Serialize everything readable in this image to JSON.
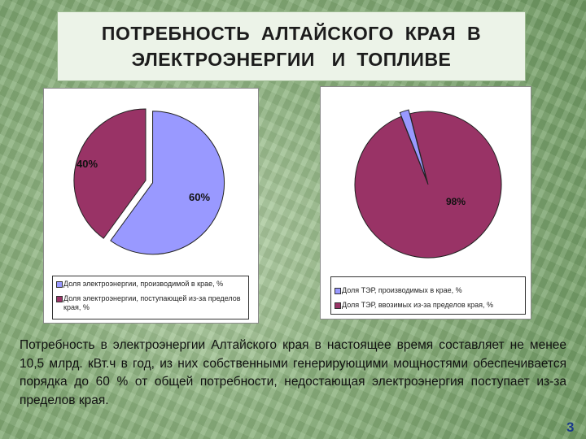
{
  "title": {
    "line1": "ПОТРЕБНОСТЬ  АЛТАЙСКОГО  КРАЯ  В",
    "line2": "ЭЛЕКТРОЭНЕРГИИ   И  ТОПЛИВЕ"
  },
  "colors": {
    "blue": "#9999ff",
    "maroon": "#993366"
  },
  "chart_data": [
    {
      "type": "pie",
      "slices": [
        {
          "label": "Доля электроэнергии, производимой в крае, %",
          "value": 60,
          "display": "60%",
          "color": "#9999ff",
          "exploded": true
        },
        {
          "label": "Доля электроэнергии, поступающей из-за пределов края, %",
          "value": 40,
          "display": "40%",
          "color": "#993366",
          "exploded": false
        }
      ],
      "legend": "bottom"
    },
    {
      "type": "pie",
      "slices": [
        {
          "label": "Доля ТЭР, производимых в крае, %",
          "value": 2,
          "display": "2%",
          "color": "#9999ff",
          "exploded": true
        },
        {
          "label": "Доля ТЭР, ввозимых из-за пределов края, %",
          "value": 98,
          "display": "98%",
          "color": "#993366",
          "exploded": false
        }
      ],
      "legend": "bottom"
    }
  ],
  "body": {
    "text": "        Потребность в электроэнергии Алтайского края в настоящее время составляет  не  менее  10,5  млрд. кВт.ч  в  год,  из  них  собственными генерирующими мощностями обеспечивается порядка до 60 % от  общей потребности,  недостающая  электроэнергия  поступает  из-за  пределов края."
  },
  "page_number": "3"
}
